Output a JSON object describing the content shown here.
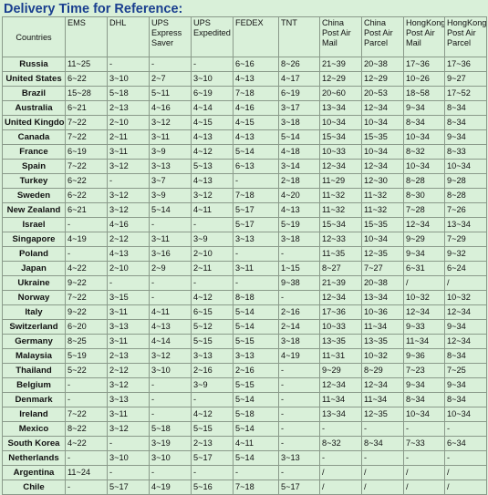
{
  "title": "Delivery Time for Reference:",
  "headers": [
    "Countries",
    "EMS",
    "DHL",
    "UPS Express Saver",
    "UPS Expedited",
    "FEDEX",
    "TNT",
    "China Post Air Mail",
    "China Post Air Parcel",
    "HongKong Post Air Mail",
    "HongKong Post Air Parcel"
  ],
  "rows": [
    [
      "Russia",
      "11~25",
      "-",
      "-",
      "-",
      "6~16",
      "8~26",
      "21~39",
      "20~38",
      "17~36",
      "17~36"
    ],
    [
      "United States",
      "6~22",
      "3~10",
      "2~7",
      "3~10",
      "4~13",
      "4~17",
      "12~29",
      "12~29",
      "10~26",
      "9~27"
    ],
    [
      "Brazil",
      "15~28",
      "5~18",
      "5~11",
      "6~19",
      "7~18",
      "6~19",
      "20~60",
      "20~53",
      "18~58",
      "17~52"
    ],
    [
      "Australia",
      "6~21",
      "2~13",
      "4~16",
      "4~14",
      "4~16",
      "3~17",
      "13~34",
      "12~34",
      "9~34",
      "8~34"
    ],
    [
      "United Kingdom",
      "7~22",
      "2~10",
      "3~12",
      "4~15",
      "4~15",
      "3~18",
      "10~34",
      "10~34",
      "8~34",
      "8~34"
    ],
    [
      "Canada",
      "7~22",
      "2~11",
      "3~11",
      "4~13",
      "4~13",
      "5~14",
      "15~34",
      "15~35",
      "10~34",
      "9~34"
    ],
    [
      "France",
      "6~19",
      "3~11",
      "3~9",
      "4~12",
      "5~14",
      "4~18",
      "10~33",
      "10~34",
      "8~32",
      "8~33"
    ],
    [
      "Spain",
      "7~22",
      "3~12",
      "3~13",
      "5~13",
      "6~13",
      "3~14",
      "12~34",
      "12~34",
      "10~34",
      "10~34"
    ],
    [
      "Turkey",
      "6~22",
      "-",
      "3~7",
      "4~13",
      "-",
      "2~18",
      "11~29",
      "12~30",
      "8~28",
      "9~28"
    ],
    [
      "Sweden",
      "6~22",
      "3~12",
      "3~9",
      "3~12",
      "7~18",
      "4~20",
      "11~32",
      "11~32",
      "8~30",
      "8~28"
    ],
    [
      "New Zealand",
      "6~21",
      "3~12",
      "5~14",
      "4~11",
      "5~17",
      "4~13",
      "11~32",
      "11~32",
      "7~28",
      "7~26"
    ],
    [
      "Israel",
      "-",
      "4~16",
      "-",
      "-",
      "5~17",
      "5~19",
      "15~34",
      "15~35",
      "12~34",
      "13~34"
    ],
    [
      "Singapore",
      "4~19",
      "2~12",
      "3~11",
      "3~9",
      "3~13",
      "3~18",
      "12~33",
      "10~34",
      "9~29",
      "7~29"
    ],
    [
      "Poland",
      "-",
      "4~13",
      "3~16",
      "2~10",
      "-",
      "-",
      "11~35",
      "12~35",
      "9~34",
      "9~32"
    ],
    [
      "Japan",
      "4~22",
      "2~10",
      "2~9",
      "2~11",
      "3~11",
      "1~15",
      "8~27",
      "7~27",
      "6~31",
      "6~24"
    ],
    [
      "Ukraine",
      "9~22",
      "-",
      "-",
      "-",
      "-",
      "9~38",
      "21~39",
      "20~38",
      "/",
      "/"
    ],
    [
      "Norway",
      "7~22",
      "3~15",
      "-",
      "4~12",
      "8~18",
      "-",
      "12~34",
      "13~34",
      "10~32",
      "10~32"
    ],
    [
      "Italy",
      "9~22",
      "3~11",
      "4~11",
      "6~15",
      "5~14",
      "2~16",
      "17~36",
      "10~36",
      "12~34",
      "12~34"
    ],
    [
      "Switzerland",
      "6~20",
      "3~13",
      "4~13",
      "5~12",
      "5~14",
      "2~14",
      "10~33",
      "11~34",
      "9~33",
      "9~34"
    ],
    [
      "Germany",
      "8~25",
      "3~11",
      "4~14",
      "5~15",
      "5~15",
      "3~18",
      "13~35",
      "13~35",
      "11~34",
      "12~34"
    ],
    [
      "Malaysia",
      "5~19",
      "2~13",
      "3~12",
      "3~13",
      "3~13",
      "4~19",
      "11~31",
      "10~32",
      "9~36",
      "8~34"
    ],
    [
      "Thailand",
      "5~22",
      "2~12",
      "3~10",
      "2~16",
      "2~16",
      "-",
      "9~29",
      "8~29",
      "7~23",
      "7~25"
    ],
    [
      "Belgium",
      "-",
      "3~12",
      "-",
      "3~9",
      "5~15",
      "-",
      "12~34",
      "12~34",
      "9~34",
      "9~34"
    ],
    [
      "Denmark",
      "-",
      "3~13",
      "-",
      "-",
      "5~14",
      "-",
      "11~34",
      "11~34",
      "8~34",
      "8~34"
    ],
    [
      "Ireland",
      "7~22",
      "3~11",
      "-",
      "4~12",
      "5~18",
      "-",
      "13~34",
      "12~35",
      "10~34",
      "10~34"
    ],
    [
      "Mexico",
      "8~22",
      "3~12",
      "5~18",
      "5~15",
      "5~14",
      "-",
      "-",
      "-",
      "-",
      "-"
    ],
    [
      "South Korea",
      "4~22",
      "-",
      "3~19",
      "2~13",
      "4~11",
      "-",
      "8~32",
      "8~34",
      "7~33",
      "6~34"
    ],
    [
      "Netherlands",
      "-",
      "3~10",
      "3~10",
      "5~17",
      "5~14",
      "3~13",
      "-",
      "-",
      "-",
      "-"
    ],
    [
      "Argentina",
      "11~24",
      "-",
      "-",
      "-",
      "-",
      "-",
      "/",
      "/",
      "/",
      "/"
    ],
    [
      "Chile",
      "-",
      "5~17",
      "4~19",
      "5~16",
      "7~18",
      "5~17",
      "/",
      "/",
      "/",
      "/"
    ]
  ]
}
